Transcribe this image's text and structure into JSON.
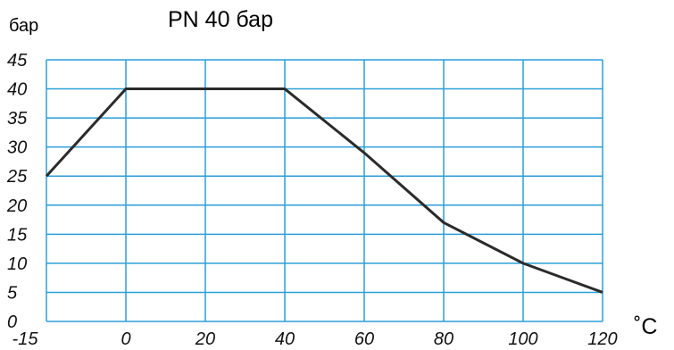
{
  "chart_data": {
    "type": "line",
    "title": "PN 40 бар",
    "ylabel": "бар",
    "xlabel": "˚C",
    "x_ticks": [
      "-15",
      "0",
      "20",
      "40",
      "60",
      "80",
      "100",
      "120"
    ],
    "y_ticks": [
      "0",
      "5",
      "10",
      "15",
      "20",
      "25",
      "30",
      "35",
      "40",
      "45"
    ],
    "xlim": [
      -20,
      120
    ],
    "ylim": [
      0,
      45
    ],
    "grid": true,
    "series": [
      {
        "x": [
          -20,
          0,
          40,
          60,
          80,
          100,
          120
        ],
        "y": [
          25,
          40,
          40,
          29,
          17,
          10,
          5
        ]
      }
    ]
  },
  "colors": {
    "grid": "#2a9fd6",
    "line": "#2b2b2b"
  }
}
